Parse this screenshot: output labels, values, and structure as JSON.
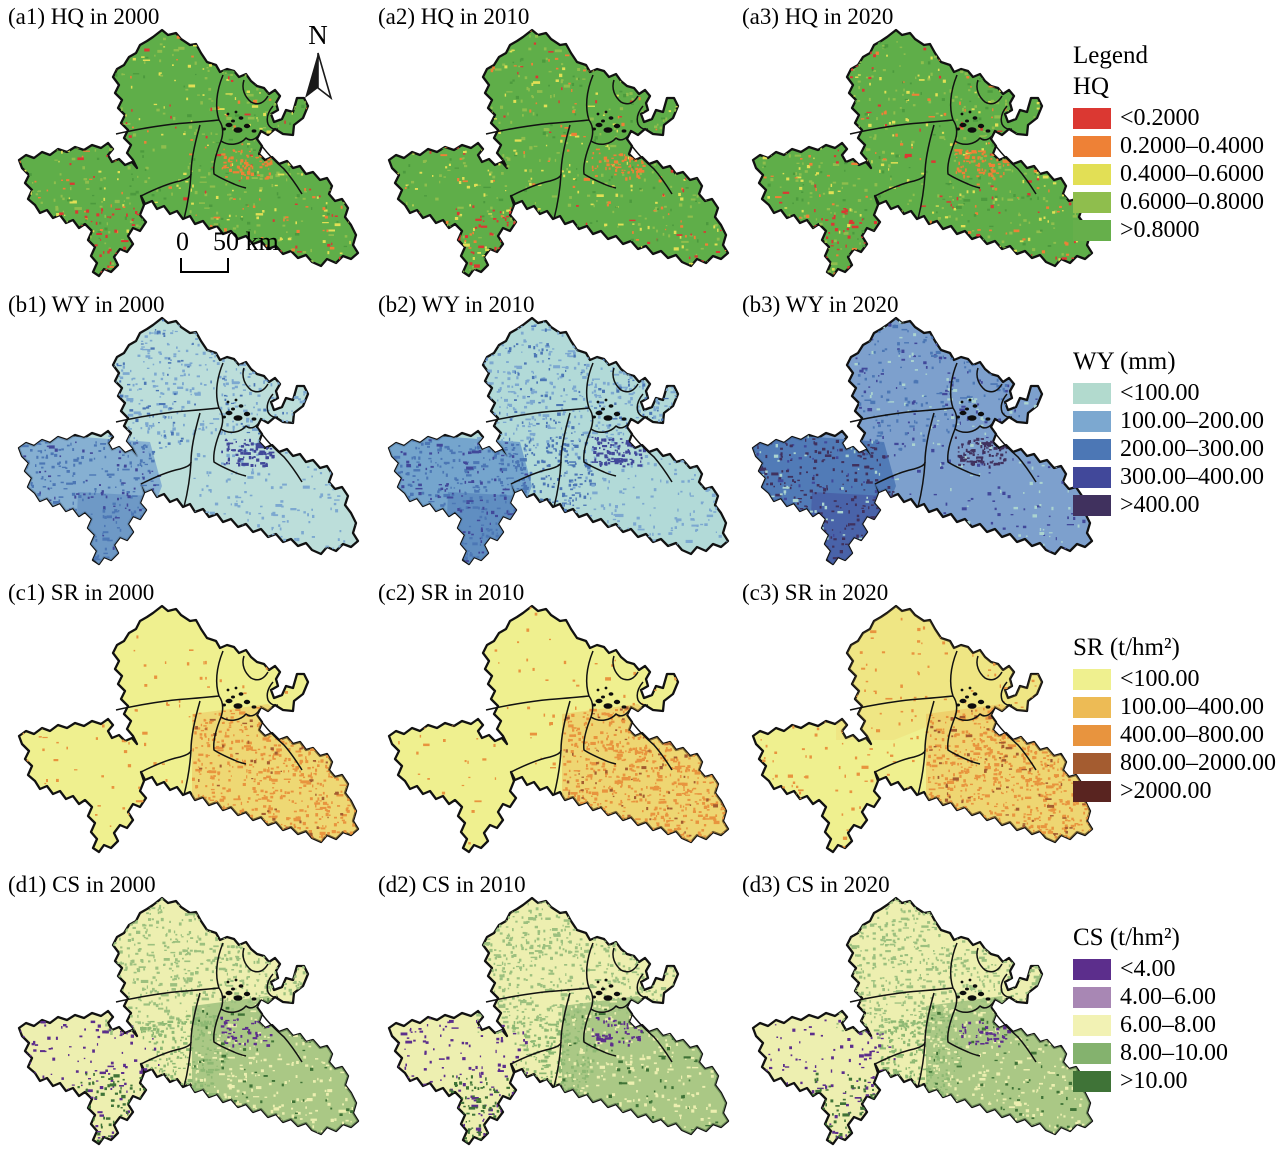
{
  "panels": [
    {
      "id": "a1",
      "label": "(a1) HQ in 2000"
    },
    {
      "id": "a2",
      "label": "(a2) HQ in 2010"
    },
    {
      "id": "a3",
      "label": "(a3) HQ in 2020"
    },
    {
      "id": "b1",
      "label": "(b1) WY in 2000"
    },
    {
      "id": "b2",
      "label": "(b2) WY in 2010"
    },
    {
      "id": "b3",
      "label": "(b3) WY in 2020"
    },
    {
      "id": "c1",
      "label": "(c1) SR in 2000"
    },
    {
      "id": "c2",
      "label": "(c2) SR in 2010"
    },
    {
      "id": "c3",
      "label": "(c3) SR in 2020"
    },
    {
      "id": "d1",
      "label": "(d1) CS in 2000"
    },
    {
      "id": "d2",
      "label": "(d2) CS in 2010"
    },
    {
      "id": "d3",
      "label": "(d3) CS in 2020"
    }
  ],
  "decor": {
    "north_label": "N",
    "scale_zero": "0",
    "scale_distance": "50 km"
  },
  "legends": [
    {
      "header": "Legend",
      "title": "HQ",
      "items": [
        {
          "color": "#DB3832",
          "label": "<0.2000"
        },
        {
          "color": "#EE8136",
          "label": "0.2000–0.4000"
        },
        {
          "color": "#E2DF55",
          "label": "0.4000–0.6000"
        },
        {
          "color": "#8FBE4D",
          "label": "0.6000–0.8000"
        },
        {
          "color": "#66AF4B",
          "label": ">0.8000"
        }
      ]
    },
    {
      "header": "",
      "title": "WY (mm)",
      "items": [
        {
          "color": "#B2DACE",
          "label": "<100.00"
        },
        {
          "color": "#7CA8D0",
          "label": "100.00–200.00"
        },
        {
          "color": "#4C77B5",
          "label": "200.00–300.00"
        },
        {
          "color": "#41489A",
          "label": "300.00–400.00"
        },
        {
          "color": "#40315E",
          "label": ">400.00"
        }
      ]
    },
    {
      "header": "",
      "title": "SR (t/hm²)",
      "items": [
        {
          "color": "#EFF08F",
          "label": "<100.00"
        },
        {
          "color": "#EDBB55",
          "label": "100.00–400.00"
        },
        {
          "color": "#E8943E",
          "label": "400.00–800.00"
        },
        {
          "color": "#A45C30",
          "label": "800.00–2000.00"
        },
        {
          "color": "#592420",
          "label": ">2000.00"
        }
      ]
    },
    {
      "header": "",
      "title": "CS (t/hm²)",
      "items": [
        {
          "color": "#5C2E8C",
          "label": "<4.00"
        },
        {
          "color": "#A887B4",
          "label": "4.00–6.00"
        },
        {
          "color": "#F2F2B4",
          "label": "6.00–8.00"
        },
        {
          "color": "#84B26E",
          "label": "8.00–10.00"
        },
        {
          "color": "#3F7337",
          "label": ">10.00"
        }
      ]
    }
  ],
  "map_styles": {
    "a1": {
      "base": "#5FAE49",
      "regions": [],
      "speckles": [
        [
          "#8FBE4D",
          420,
          "all"
        ],
        [
          "#E2DF55",
          240,
          "all"
        ],
        [
          "#EE8136",
          150,
          "all"
        ],
        [
          "#DB3832",
          110,
          "all"
        ],
        [
          "#4C9A3E",
          170,
          "all"
        ],
        [
          "#EE8136",
          80,
          "band"
        ],
        [
          "#DB3832",
          40,
          "swtip"
        ]
      ]
    },
    "a2": {
      "base": "#5FAE49",
      "regions": [],
      "speckles": [
        [
          "#8FBE4D",
          420,
          "all"
        ],
        [
          "#E2DF55",
          240,
          "all"
        ],
        [
          "#EE8136",
          130,
          "all"
        ],
        [
          "#DB3832",
          90,
          "all"
        ],
        [
          "#4C9A3E",
          170,
          "all"
        ],
        [
          "#EE8136",
          70,
          "band"
        ],
        [
          "#DB3832",
          40,
          "swtip"
        ]
      ]
    },
    "a3": {
      "base": "#5FAE49",
      "regions": [],
      "speckles": [
        [
          "#8FBE4D",
          430,
          "all"
        ],
        [
          "#E2DF55",
          250,
          "all"
        ],
        [
          "#EE8136",
          150,
          "all"
        ],
        [
          "#DB3832",
          120,
          "all"
        ],
        [
          "#4C9A3E",
          170,
          "all"
        ],
        [
          "#EE8136",
          80,
          "band"
        ],
        [
          "#DB3832",
          50,
          "swtip"
        ]
      ]
    },
    "b1": {
      "base": "#BCDEDA",
      "regions": [
        [
          "sw",
          "#7CA8D0",
          0.85
        ],
        [
          "swtip",
          "#4C77B5",
          0.4
        ]
      ],
      "speckles": [
        [
          "#7CA8D0",
          420,
          "north"
        ],
        [
          "#4C77B5",
          220,
          "sw"
        ],
        [
          "#41489A",
          80,
          "sw"
        ],
        [
          "#7CA8D0",
          170,
          "se"
        ],
        [
          "#41489A",
          90,
          "band"
        ],
        [
          "#4C77B5",
          120,
          "north"
        ]
      ]
    },
    "b2": {
      "base": "#B2DAD8",
      "regions": [
        [
          "sw",
          "#6E9FCC",
          0.9
        ],
        [
          "swtip",
          "#4C77B5",
          0.5
        ]
      ],
      "speckles": [
        [
          "#7CA8D0",
          520,
          "north"
        ],
        [
          "#4C77B5",
          280,
          "sw"
        ],
        [
          "#41489A",
          120,
          "sw"
        ],
        [
          "#4C77B5",
          160,
          "mid"
        ],
        [
          "#7CA8D0",
          210,
          "se"
        ],
        [
          "#41489A",
          110,
          "band"
        ],
        [
          "#4C77B5",
          160,
          "north"
        ]
      ]
    },
    "b3": {
      "base": "#7DA0CD",
      "regions": [
        [
          "sw",
          "#4C77B5",
          0.9
        ],
        [
          "swtip",
          "#41489A",
          0.45
        ]
      ],
      "speckles": [
        [
          "#41489A",
          380,
          "all"
        ],
        [
          "#40315E",
          220,
          "sw"
        ],
        [
          "#ABD4D0",
          280,
          "all"
        ],
        [
          "#4C77B5",
          240,
          "north"
        ],
        [
          "#40315E",
          100,
          "band"
        ]
      ]
    },
    "c1": {
      "base": "#EFF08F",
      "regions": [
        [
          "se",
          "#EDBB55",
          0.45
        ]
      ],
      "speckles": [
        [
          "#E8943E",
          200,
          "all"
        ],
        [
          "#E8943E",
          520,
          "se"
        ],
        [
          "#A45C30",
          70,
          "se"
        ]
      ]
    },
    "c2": {
      "base": "#EFF08F",
      "regions": [
        [
          "se",
          "#EDBB55",
          0.5
        ]
      ],
      "speckles": [
        [
          "#E8943E",
          240,
          "all"
        ],
        [
          "#E8943E",
          560,
          "se"
        ],
        [
          "#A45C30",
          80,
          "se"
        ]
      ]
    },
    "c3": {
      "base": "#EFF08F",
      "regions": [
        [
          "se",
          "#EDBB55",
          0.5
        ],
        [
          "north",
          "#EDBB55",
          0.18
        ]
      ],
      "speckles": [
        [
          "#E8943E",
          380,
          "all"
        ],
        [
          "#E8943E",
          620,
          "se"
        ],
        [
          "#A45C30",
          90,
          "se"
        ]
      ]
    },
    "d1": {
      "base": "#EDEFB0",
      "regions": [
        [
          "se",
          "#8DB873",
          0.7
        ]
      ],
      "speckles": [
        [
          "#9CC07F",
          760,
          "north"
        ],
        [
          "#8DB873",
          220,
          "mid"
        ],
        [
          "#5C2E8C",
          120,
          "sw"
        ],
        [
          "#3F7337",
          90,
          "swtip"
        ],
        [
          "#EDEFB0",
          240,
          "se"
        ],
        [
          "#3F7337",
          60,
          "se"
        ],
        [
          "#5C2E8C",
          50,
          "band"
        ]
      ]
    },
    "d2": {
      "base": "#EDEFB0",
      "regions": [
        [
          "se",
          "#8DB873",
          0.7
        ]
      ],
      "speckles": [
        [
          "#9CC07F",
          760,
          "north"
        ],
        [
          "#8DB873",
          220,
          "mid"
        ],
        [
          "#5C2E8C",
          140,
          "sw"
        ],
        [
          "#3F7337",
          100,
          "swtip"
        ],
        [
          "#EDEFB0",
          240,
          "se"
        ],
        [
          "#3F7337",
          60,
          "se"
        ],
        [
          "#5C2E8C",
          60,
          "band"
        ]
      ]
    },
    "d3": {
      "base": "#EDEFB0",
      "regions": [
        [
          "se",
          "#8DB873",
          0.7
        ]
      ],
      "speckles": [
        [
          "#9CC07F",
          780,
          "north"
        ],
        [
          "#8DB873",
          230,
          "mid"
        ],
        [
          "#5C2E8C",
          130,
          "sw"
        ],
        [
          "#3F7337",
          90,
          "swtip"
        ],
        [
          "#EDEFB0",
          240,
          "se"
        ],
        [
          "#3F7337",
          70,
          "se"
        ],
        [
          "#5C2E8C",
          50,
          "band"
        ]
      ]
    }
  }
}
